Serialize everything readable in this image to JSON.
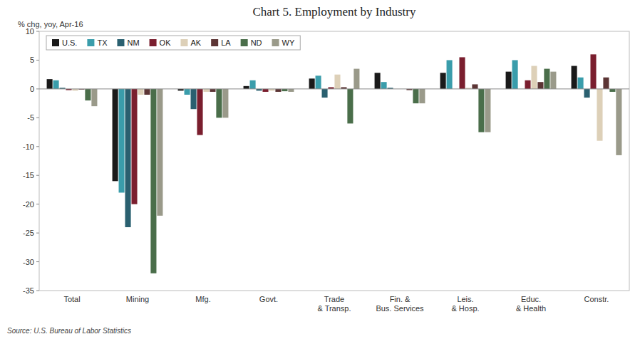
{
  "chart_data": {
    "type": "bar",
    "title": "Chart 5. Employment by Industry",
    "ylabel": "% chg, yoy, Apr-16",
    "source": "Source: U.S. Bureau of Labor Statistics",
    "categories": [
      "Total",
      "Mining",
      "Mfg.",
      "Govt.",
      "Trade\n& Transp.",
      "Fin. &\nBus. Services",
      "Leis.\n& Hosp.",
      "Educ.\n& Health",
      "Constr."
    ],
    "series": [
      {
        "name": "U.S.",
        "color": "#1a1a1a",
        "values": [
          1.7,
          -16.0,
          -0.3,
          0.5,
          1.8,
          2.8,
          2.8,
          3.0,
          4.0
        ]
      },
      {
        "name": "TX",
        "color": "#3a9dab",
        "values": [
          1.5,
          -18.0,
          -1.0,
          1.5,
          2.3,
          1.2,
          5.0,
          5.0,
          2.0
        ]
      },
      {
        "name": "NM",
        "color": "#2a6070",
        "values": [
          0.2,
          -24.0,
          -3.5,
          -0.3,
          -1.5,
          0.2,
          0.0,
          0.0,
          -1.5
        ]
      },
      {
        "name": "OK",
        "color": "#7a1e2e",
        "values": [
          -0.2,
          -20.0,
          -8.0,
          -0.5,
          0.3,
          0.0,
          5.5,
          1.5,
          6.0
        ]
      },
      {
        "name": "AK",
        "color": "#ddd0b8",
        "values": [
          -0.3,
          -1.0,
          -0.5,
          -0.3,
          2.5,
          0.0,
          0.2,
          4.0,
          -9.0
        ]
      },
      {
        "name": "LA",
        "color": "#5c3535",
        "values": [
          -0.1,
          -1.0,
          -0.5,
          -0.5,
          0.3,
          -0.2,
          0.8,
          1.2,
          2.0
        ]
      },
      {
        "name": "ND",
        "color": "#4a6e4a",
        "values": [
          -2.0,
          -32.0,
          -5.0,
          -0.4,
          -6.0,
          -2.5,
          -7.5,
          3.5,
          -0.5
        ]
      },
      {
        "name": "WY",
        "color": "#9a9a8a",
        "values": [
          -3.0,
          -22.0,
          -5.0,
          -0.5,
          3.5,
          -2.5,
          -7.5,
          3.0,
          -11.5
        ]
      }
    ],
    "ylim": [
      -35,
      10
    ],
    "yticks": [
      -35,
      -30,
      -25,
      -20,
      -15,
      -10,
      -5,
      0,
      5,
      10
    ],
    "grid": false,
    "legend": "upper left"
  }
}
